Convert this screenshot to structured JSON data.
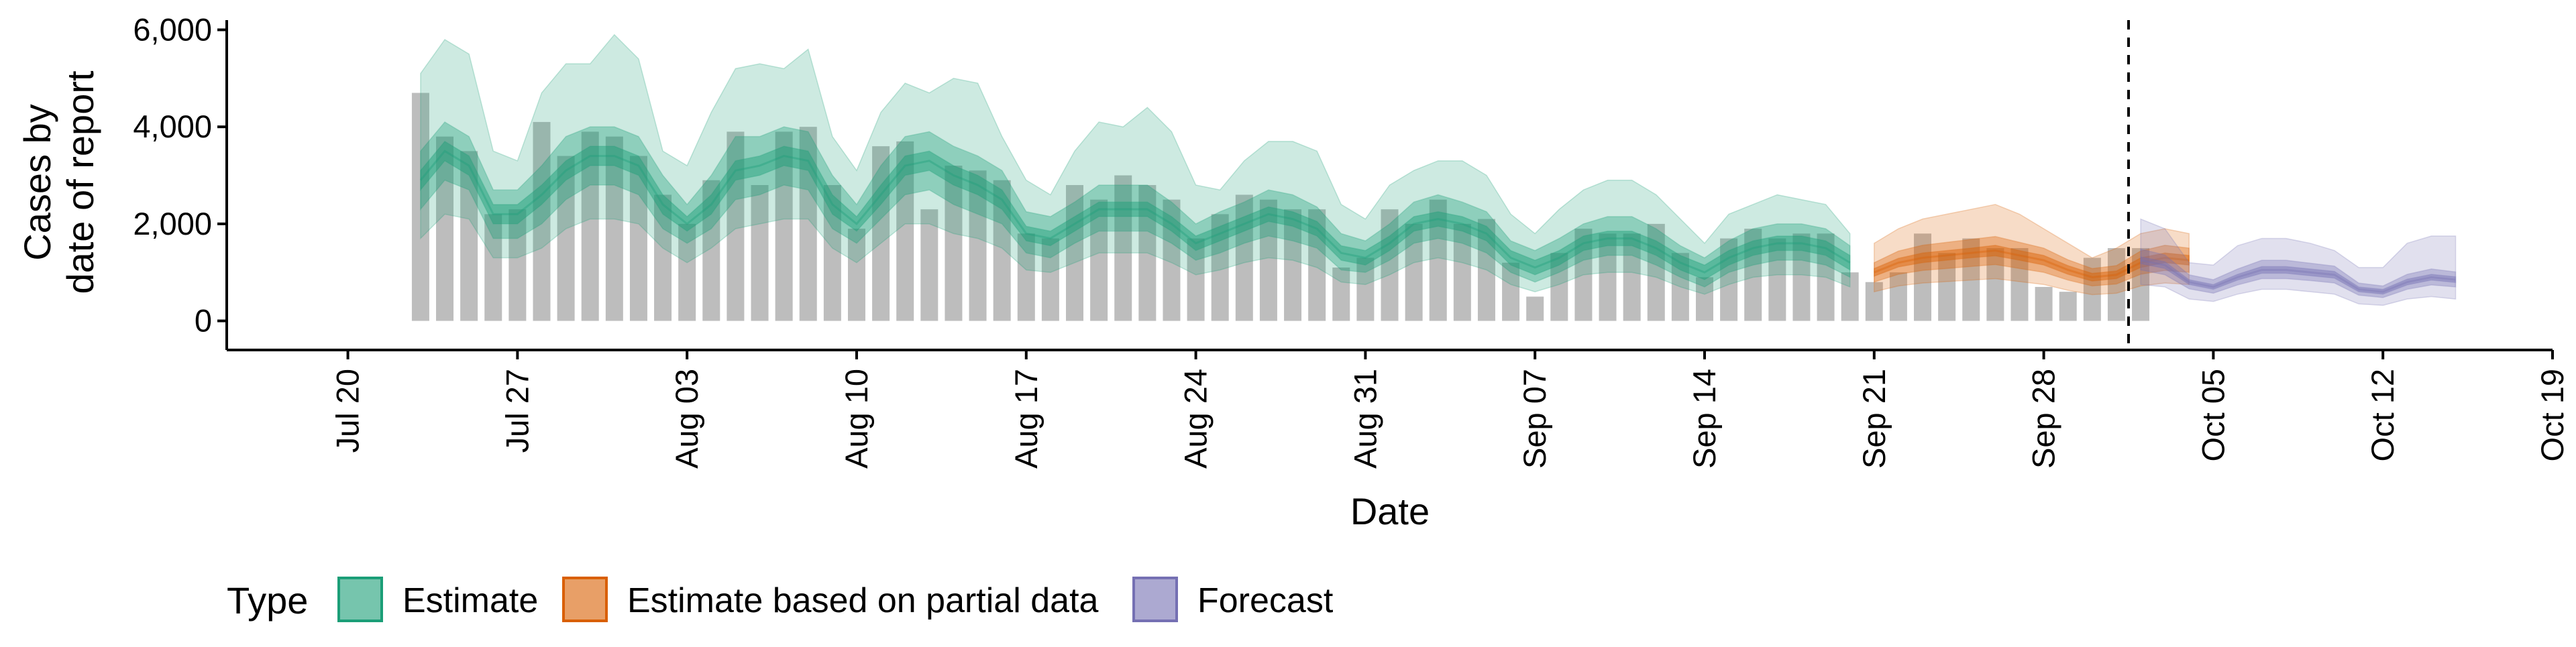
{
  "chart_data": {
    "type": "area",
    "xlabel": "Date",
    "ylabel": [
      "Cases by",
      "date of report"
    ],
    "ylim": [
      -600,
      6200
    ],
    "y_ticks": [
      0,
      2000,
      4000,
      6000
    ],
    "y_tick_labels": [
      "0",
      "2,000",
      "4,000",
      "6,000"
    ],
    "x_domain": [
      "2020-07-15",
      "2020-10-19"
    ],
    "x_ticks": [
      "2020-07-20",
      "2020-07-27",
      "2020-08-03",
      "2020-08-10",
      "2020-08-17",
      "2020-08-24",
      "2020-08-31",
      "2020-09-07",
      "2020-09-14",
      "2020-09-21",
      "2020-09-28",
      "2020-10-05",
      "2020-10-12",
      "2020-10-19"
    ],
    "x_tick_labels": [
      "Jul 20",
      "Jul 27",
      "Aug 03",
      "Aug 10",
      "Aug 17",
      "Aug 24",
      "Aug 31",
      "Sep 07",
      "Sep 14",
      "Sep 21",
      "Sep 28",
      "Oct 05",
      "Oct 12",
      "Oct 19"
    ],
    "vline_date": "2020-10-01",
    "grid": false,
    "legend": {
      "position": "bottom",
      "title": "Type",
      "entries": [
        {
          "label": "Estimate",
          "fill": "#1b9e77",
          "stroke": "#1b9e77"
        },
        {
          "label": "Estimate based on partial data",
          "fill": "#d95f02",
          "stroke": "#d95f02"
        },
        {
          "label": "Forecast",
          "fill": "#7570b3",
          "stroke": "#7570b3"
        }
      ]
    },
    "bar_color": "#bdbdbd",
    "bars": {
      "start_date": "2020-07-23",
      "values": [
        4700,
        3800,
        3500,
        2200,
        2300,
        4100,
        3400,
        3900,
        3800,
        3400,
        2600,
        2000,
        2900,
        3900,
        2800,
        3900,
        4000,
        2800,
        1900,
        3600,
        3700,
        2300,
        3200,
        3100,
        2900,
        1800,
        1700,
        2800,
        2500,
        3000,
        2800,
        2500,
        1700,
        2200,
        2600,
        2500,
        2300,
        2300,
        1100,
        1300,
        2300,
        2000,
        2500,
        2000,
        2100,
        1200,
        500,
        1400,
        1900,
        1800,
        1800,
        2000,
        1400,
        900,
        1700,
        1900,
        1700,
        1800,
        1800,
        1000,
        800,
        1000,
        1800,
        1400,
        1700,
        1500,
        1500,
        700,
        600,
        1300,
        1500,
        1500
      ]
    },
    "series": [
      {
        "name": "Estimate",
        "color": "#1b9e77",
        "start_date": "2020-07-23",
        "median": [
          2900,
          3500,
          3200,
          2200,
          2200,
          2600,
          3100,
          3400,
          3400,
          3200,
          2400,
          2000,
          2400,
          3100,
          3200,
          3400,
          3300,
          2400,
          2000,
          2600,
          3200,
          3300,
          3000,
          2800,
          2500,
          1800,
          1700,
          2000,
          2300,
          2300,
          2300,
          2000,
          1600,
          1800,
          2000,
          2200,
          2100,
          1900,
          1400,
          1300,
          1600,
          2000,
          2100,
          2000,
          1800,
          1300,
          1100,
          1300,
          1600,
          1700,
          1700,
          1500,
          1200,
          1000,
          1300,
          1500,
          1600,
          1600,
          1500,
          1200
        ],
        "bands": [
          {
            "lo": [
              2700,
              3300,
              3000,
              2000,
              2000,
              2400,
              2900,
              3200,
              3200,
              3000,
              2200,
              1850,
              2200,
              2900,
              3000,
              3200,
              3100,
              2200,
              1850,
              2400,
              3000,
              3100,
              2800,
              2600,
              2300,
              1650,
              1550,
              1850,
              2150,
              2150,
              2150,
              1850,
              1450,
              1650,
              1850,
              2050,
              1950,
              1750,
              1250,
              1150,
              1450,
              1850,
              1950,
              1850,
              1650,
              1150,
              950,
              1150,
              1450,
              1550,
              1550,
              1350,
              1050,
              850,
              1150,
              1350,
              1450,
              1450,
              1350,
              1050
            ],
            "hi": [
              3100,
              3700,
              3400,
              2400,
              2400,
              2800,
              3300,
              3600,
              3600,
              3400,
              2600,
              2150,
              2600,
              3300,
              3400,
              3600,
              3500,
              2600,
              2150,
              2800,
              3400,
              3500,
              3200,
              3000,
              2700,
              1950,
              1850,
              2150,
              2450,
              2450,
              2450,
              2150,
              1750,
              1950,
              2150,
              2350,
              2250,
              2050,
              1550,
              1450,
              1750,
              2150,
              2250,
              2150,
              1950,
              1450,
              1250,
              1450,
              1750,
              1850,
              1850,
              1650,
              1350,
              1150,
              1450,
              1650,
              1750,
              1750,
              1650,
              1350
            ]
          },
          {
            "lo": [
              2300,
              2900,
              2700,
              1700,
              1700,
              2000,
              2500,
              2800,
              2800,
              2600,
              1900,
              1600,
              1900,
              2500,
              2600,
              2800,
              2700,
              1900,
              1600,
              2100,
              2600,
              2700,
              2400,
              2200,
              2000,
              1400,
              1300,
              1600,
              1850,
              1850,
              1850,
              1600,
              1250,
              1400,
              1600,
              1750,
              1650,
              1500,
              1050,
              1000,
              1250,
              1600,
              1700,
              1600,
              1400,
              1000,
              800,
              1000,
              1250,
              1350,
              1350,
              1150,
              900,
              700,
              1000,
              1150,
              1250,
              1250,
              1150,
              900
            ],
            "hi": [
              3500,
              4100,
              3800,
              2700,
              2700,
              3200,
              3800,
              4000,
              4000,
              3800,
              3000,
              2400,
              3000,
              3800,
              3800,
              4000,
              3900,
              3000,
              2400,
              3200,
              3800,
              3900,
              3600,
              3400,
              3100,
              2250,
              2150,
              2450,
              2800,
              2800,
              2800,
              2450,
              2000,
              2250,
              2450,
              2700,
              2600,
              2350,
              1800,
              1650,
              2000,
              2450,
              2600,
              2450,
              2250,
              1650,
              1450,
              1700,
              2000,
              2150,
              2150,
              1900,
              1550,
              1300,
              1650,
              1900,
              2000,
              2000,
              1900,
              1550
            ]
          },
          {
            "lo": [
              1700,
              2200,
              2100,
              1300,
              1300,
              1500,
              1900,
              2100,
              2100,
              2000,
              1500,
              1200,
              1500,
              1900,
              2000,
              2100,
              2100,
              1500,
              1200,
              1600,
              2000,
              2000,
              1800,
              1700,
              1500,
              1050,
              1000,
              1200,
              1400,
              1400,
              1400,
              1200,
              950,
              1050,
              1200,
              1300,
              1250,
              1100,
              800,
              750,
              950,
              1200,
              1300,
              1200,
              1050,
              750,
              600,
              750,
              950,
              1000,
              1000,
              900,
              700,
              550,
              750,
              900,
              950,
              950,
              900,
              700
            ],
            "hi": [
              5100,
              5800,
              5500,
              3500,
              3300,
              4700,
              5300,
              5300,
              5900,
              5400,
              3500,
              3200,
              4300,
              5200,
              5300,
              5200,
              5600,
              3800,
              3100,
              4300,
              4900,
              4700,
              5000,
              4900,
              3800,
              2900,
              2600,
              3500,
              4100,
              4000,
              4400,
              3900,
              2800,
              2700,
              3300,
              3700,
              3700,
              3500,
              2400,
              2100,
              2800,
              3100,
              3300,
              3300,
              3000,
              2200,
              1800,
              2300,
              2700,
              2900,
              2900,
              2600,
              2100,
              1600,
              2200,
              2400,
              2600,
              2500,
              2400,
              1800
            ]
          }
        ]
      },
      {
        "name": "Estimate based on partial data",
        "color": "#d95f02",
        "start_date": "2020-09-21",
        "median": [
          1000,
          1200,
          1300,
          1350,
          1400,
          1450,
          1350,
          1250,
          1050,
          900,
          950,
          1200,
          1300,
          1250
        ],
        "bands": [
          {
            "lo": [
              920,
              1110,
              1200,
              1250,
              1300,
              1340,
              1250,
              1150,
              960,
              820,
              870,
              1100,
              1200,
              1150
            ],
            "hi": [
              1080,
              1290,
              1400,
              1450,
              1500,
              1560,
              1450,
              1350,
              1140,
              980,
              1030,
              1300,
              1400,
              1350
            ]
          },
          {
            "lo": [
              800,
              960,
              1040,
              1080,
              1120,
              1160,
              1080,
              1000,
              840,
              720,
              760,
              960,
              1040,
              1000
            ],
            "hi": [
              1200,
              1440,
              1560,
              1620,
              1680,
              1740,
              1620,
              1500,
              1260,
              1080,
              1140,
              1440,
              1560,
              1500
            ]
          },
          {
            "lo": [
              600,
              720,
              780,
              810,
              840,
              870,
              810,
              750,
              630,
              540,
              570,
              720,
              780,
              750
            ],
            "hi": [
              1600,
              1900,
              2100,
              2200,
              2300,
              2400,
              2200,
              1900,
              1600,
              1300,
              1500,
              1800,
              1900,
              1800
            ]
          }
        ]
      },
      {
        "name": "Forecast",
        "color": "#7570b3",
        "start_date": "2020-10-02",
        "median": [
          1250,
          1150,
          800,
          700,
          900,
          1050,
          1050,
          1000,
          950,
          650,
          600,
          800,
          900,
          850
        ],
        "bands": [
          {
            "lo": [
              1180,
              1080,
              750,
              650,
              840,
              980,
              980,
              930,
              880,
              600,
              550,
              740,
              840,
              790
            ],
            "hi": [
              1320,
              1220,
              850,
              750,
              960,
              1120,
              1120,
              1070,
              1020,
              700,
              650,
              860,
              960,
              910
            ]
          },
          {
            "lo": [
              1050,
              950,
              660,
              570,
              740,
              870,
              870,
              830,
              780,
              530,
              480,
              650,
              740,
              700
            ],
            "hi": [
              1480,
              1360,
              950,
              850,
              1070,
              1250,
              1250,
              1190,
              1130,
              780,
              720,
              960,
              1070,
              1010
            ]
          },
          {
            "lo": [
              750,
              700,
              450,
              400,
              550,
              650,
              650,
              600,
              550,
              350,
              320,
              450,
              500,
              450
            ],
            "hi": [
              2100,
              1900,
              1200,
              1150,
              1550,
              1700,
              1700,
              1600,
              1450,
              1100,
              1100,
              1600,
              1750,
              1750
            ]
          }
        ]
      }
    ]
  }
}
